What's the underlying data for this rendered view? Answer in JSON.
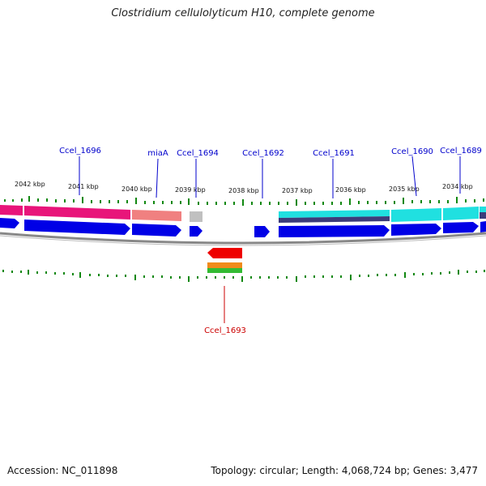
{
  "header": {
    "title": "Clostridium cellulolyticum H10, complete genome"
  },
  "footer": {
    "accession": "Accession: NC_011898",
    "topology": "Topology: circular; Length: 4,068,724 bp; Genes: 3,477"
  },
  "scale": {
    "labels": [
      "2042 kbp",
      "2041 kbp",
      "2040 kbp",
      "2039 kbp",
      "2038 kbp",
      "2037 kbp",
      "2036 kbp",
      "2035 kbp",
      "2034 kbp"
    ]
  },
  "genes": {
    "labels": [
      "Ccel_1696",
      "miaA",
      "Ccel_1694",
      "Ccel_1692",
      "Ccel_1691",
      "Ccel_1690",
      "Ccel_1689",
      "Ccel_1693"
    ]
  },
  "colors": {
    "forward_label": "#0000cc",
    "reverse_label": "#cc0000",
    "cds_blue": "#0000e6",
    "cds_red": "#ee0000",
    "cog_magenta": "#e8157a",
    "cog_salmon": "#f08080",
    "cog_gray": "#c0c0c0",
    "cog_cyan": "#20e0e0",
    "cog_navy": "#3c3c7a",
    "tick_green": "#118811",
    "backbone": "#888888"
  }
}
